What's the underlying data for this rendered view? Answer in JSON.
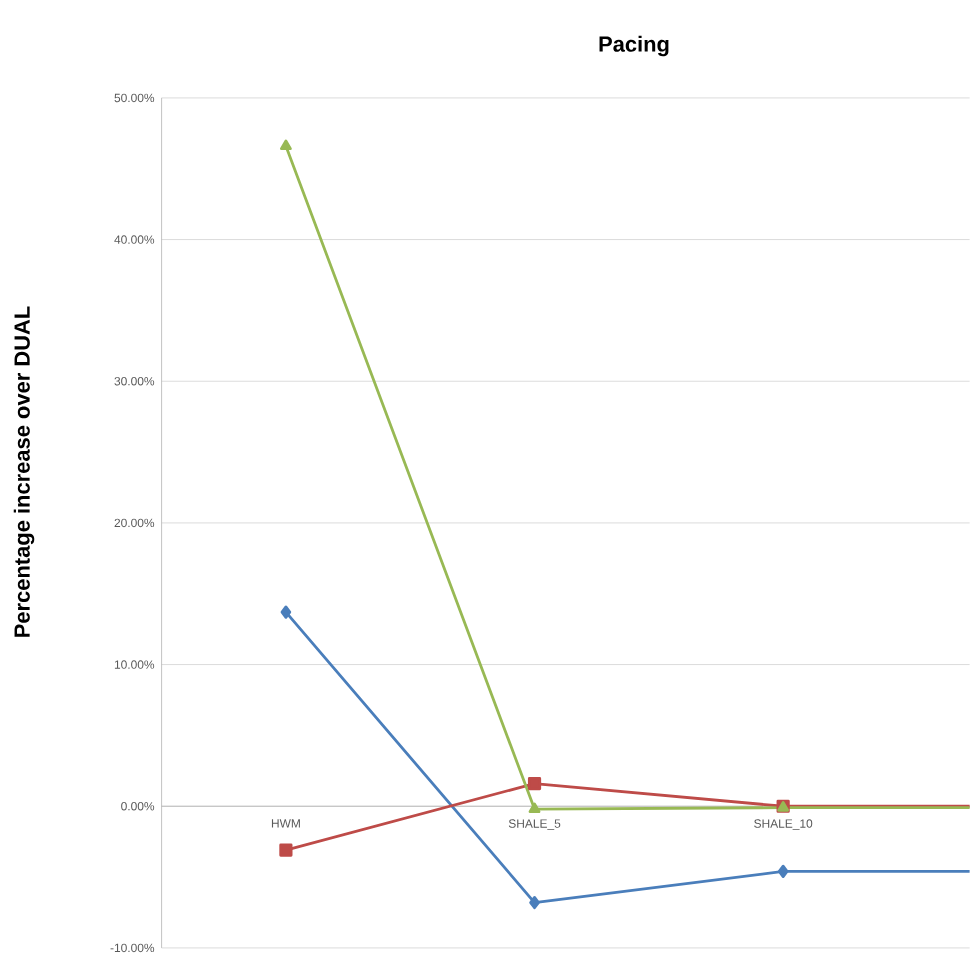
{
  "chart_data": {
    "type": "line",
    "title": "Pacing",
    "ylabel": "Percentage increase  over DUAL",
    "categories": [
      "HWM",
      "SHALE_5",
      "SHALE_10",
      null
    ],
    "series": [
      {
        "color": "#4a7ebb",
        "marker": "diamond",
        "values": [
          13.7,
          -6.8,
          -4.6,
          -4.6
        ]
      },
      {
        "color": "#be4b48",
        "marker": "square",
        "values": [
          -3.1,
          1.6,
          0.0,
          0.0
        ]
      },
      {
        "color": "#98b954",
        "marker": "triangle",
        "values": [
          46.6,
          -0.2,
          -0.1,
          -0.1
        ]
      }
    ],
    "ylim": [
      -10,
      50
    ],
    "yticks": [
      {
        "value": -10,
        "label": "-10.00%"
      },
      {
        "value": 0,
        "label": "0.00%"
      },
      {
        "value": 10,
        "label": "10.00%"
      },
      {
        "value": 20,
        "label": "20.00%"
      },
      {
        "value": 30,
        "label": "30.00%"
      },
      {
        "value": 40,
        "label": "40.00%"
      },
      {
        "value": 50,
        "label": "50.00%"
      }
    ],
    "grid": "y"
  }
}
